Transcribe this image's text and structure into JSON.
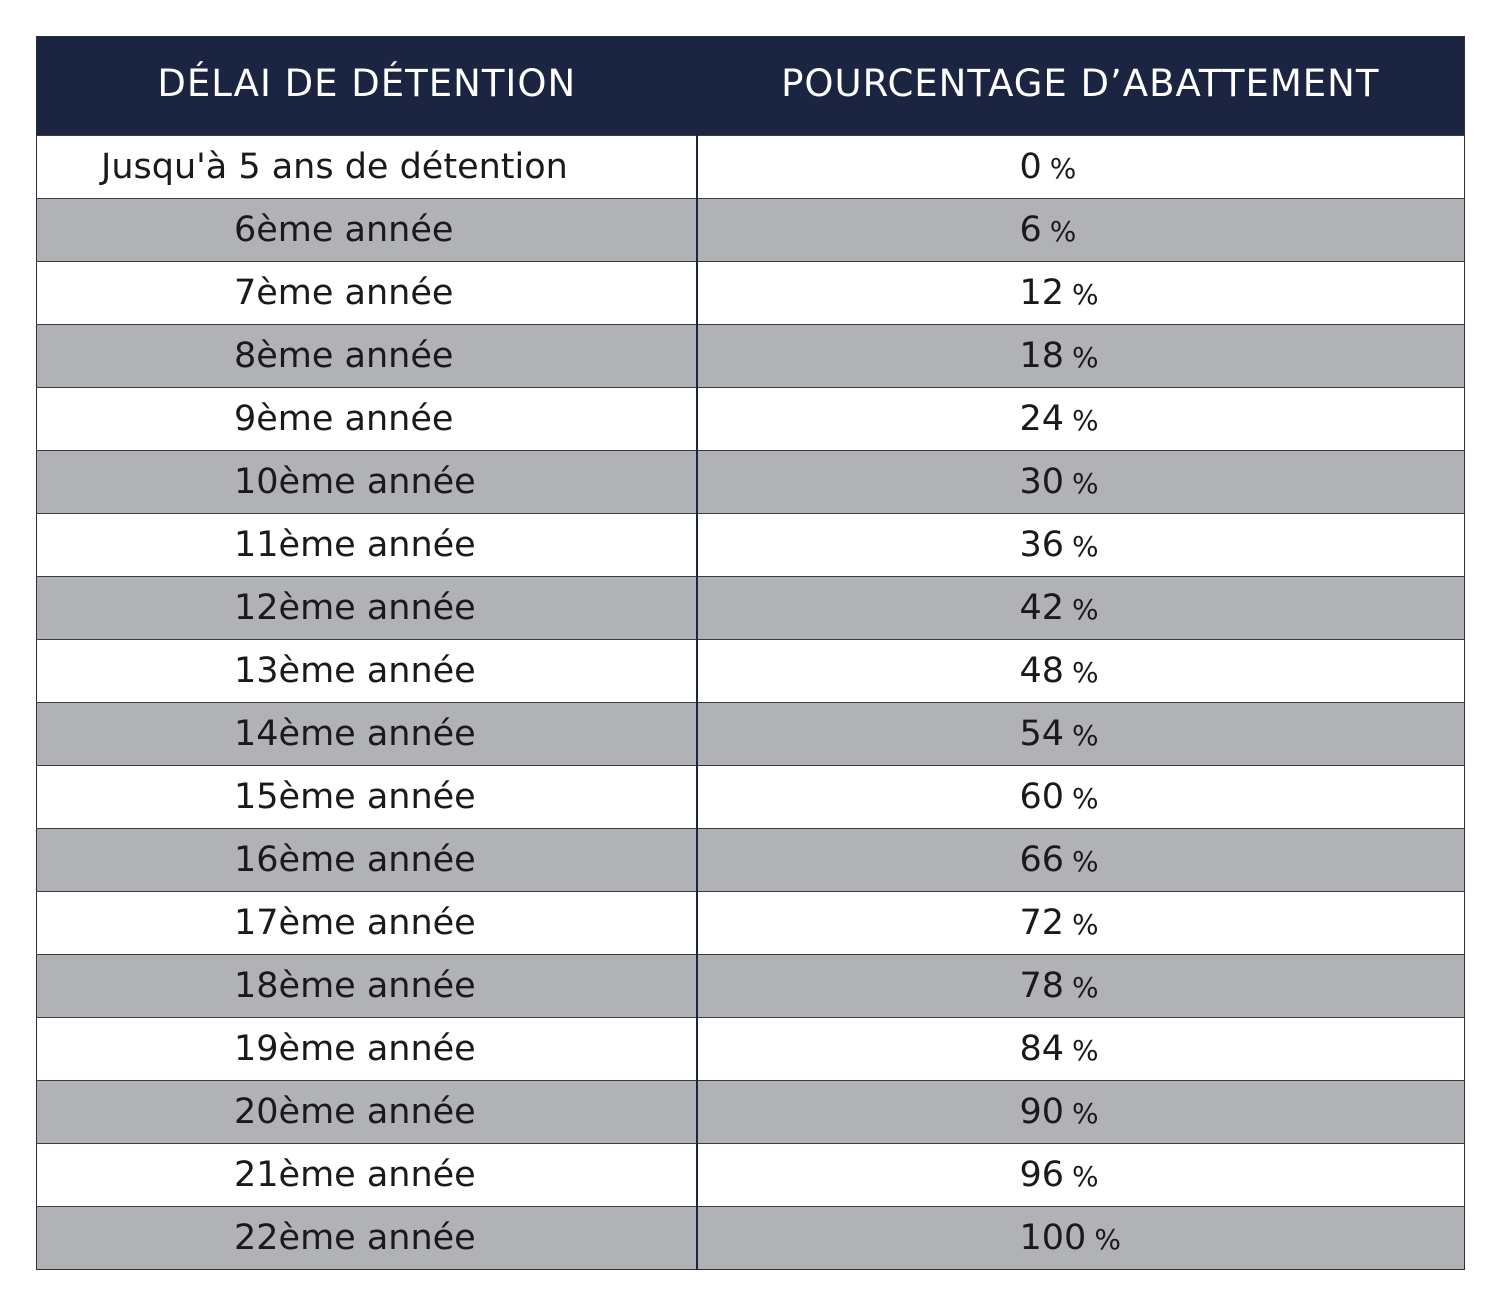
{
  "table": {
    "headers": {
      "delay": "DÉLAI DE DÉTENTION",
      "percentage": "POURCENTAGE D’ABATTEMENT"
    },
    "colors": {
      "header_bg": "#1b2440",
      "header_text": "#ffffff",
      "row_shaded": "#b1b2b6",
      "row_plain": "#ffffff"
    },
    "rows": [
      {
        "delay": "Jusqu'à 5 ans de détention",
        "value": "0",
        "unit": "%"
      },
      {
        "delay": "6ème année",
        "value": "6",
        "unit": "%"
      },
      {
        "delay": "7ème année",
        "value": "12",
        "unit": "%"
      },
      {
        "delay": "8ème année",
        "value": "18",
        "unit": "%"
      },
      {
        "delay": "9ème année",
        "value": "24",
        "unit": "%"
      },
      {
        "delay": "10ème année",
        "value": "30",
        "unit": "%"
      },
      {
        "delay": "11ème année",
        "value": "36",
        "unit": "%"
      },
      {
        "delay": "12ème année",
        "value": "42",
        "unit": "%"
      },
      {
        "delay": "13ème année",
        "value": "48",
        "unit": "%"
      },
      {
        "delay": "14ème année",
        "value": "54",
        "unit": "%"
      },
      {
        "delay": "15ème année",
        "value": "60",
        "unit": "%"
      },
      {
        "delay": "16ème année",
        "value": "66",
        "unit": "%"
      },
      {
        "delay": "17ème année",
        "value": "72",
        "unit": "%"
      },
      {
        "delay": "18ème année",
        "value": "78",
        "unit": "%"
      },
      {
        "delay": "19ème année",
        "value": "84",
        "unit": "%"
      },
      {
        "delay": "20ème année",
        "value": "90",
        "unit": "%"
      },
      {
        "delay": "21ème année",
        "value": "96",
        "unit": "%"
      },
      {
        "delay": "22ème année",
        "value": "100",
        "unit": "%"
      }
    ]
  }
}
